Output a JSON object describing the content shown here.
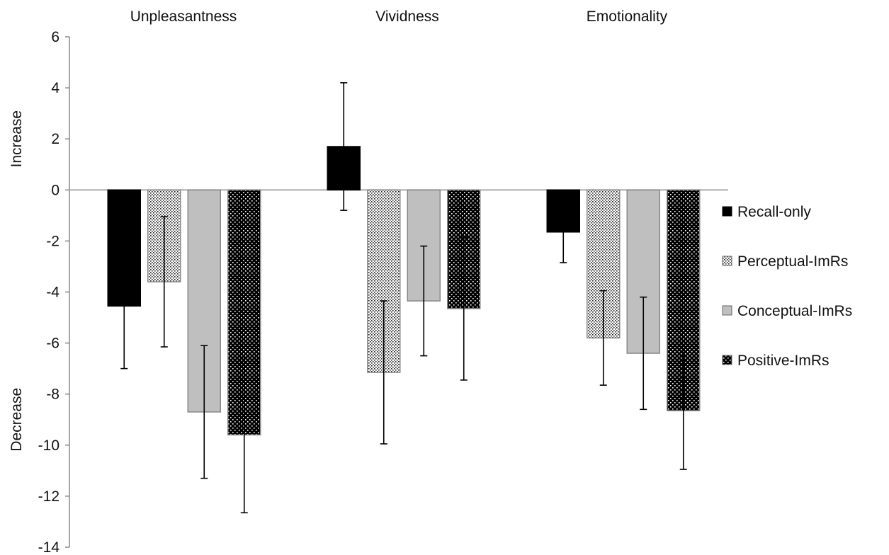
{
  "chart_data": {
    "type": "bar",
    "title": "",
    "xlabel": "",
    "ylabel_top": "Increase",
    "ylabel_bottom": "Decrease",
    "categories": [
      "Unpleasantness",
      "Vividness",
      "Emotionality"
    ],
    "ylim": [
      -14,
      6
    ],
    "yticks": [
      6,
      4,
      2,
      0,
      -2,
      -4,
      -6,
      -8,
      -10,
      -12,
      -14
    ],
    "grid": false,
    "legend_position": "right",
    "series": [
      {
        "name": "Recall-only",
        "pattern": "solid-black",
        "values": [
          -4.55,
          1.7,
          -1.65
        ],
        "error": [
          2.45,
          2.5,
          1.2
        ]
      },
      {
        "name": "Perceptual-ImRs",
        "pattern": "fine-dots",
        "values": [
          -3.6,
          -7.15,
          -5.8
        ],
        "error": [
          2.55,
          2.8,
          1.85
        ]
      },
      {
        "name": "Conceptual-ImRs",
        "pattern": "solid-gray",
        "values": [
          -8.7,
          -4.35,
          -6.4
        ],
        "error": [
          2.6,
          2.15,
          2.2
        ]
      },
      {
        "name": "Positive-ImRs",
        "pattern": "dark-dotted",
        "values": [
          -9.6,
          -4.65,
          -8.65
        ],
        "error": [
          3.05,
          2.8,
          2.3
        ]
      }
    ],
    "colors": {
      "black": "#000000",
      "gray": "#bfbfbf",
      "axis": "#888888"
    }
  }
}
